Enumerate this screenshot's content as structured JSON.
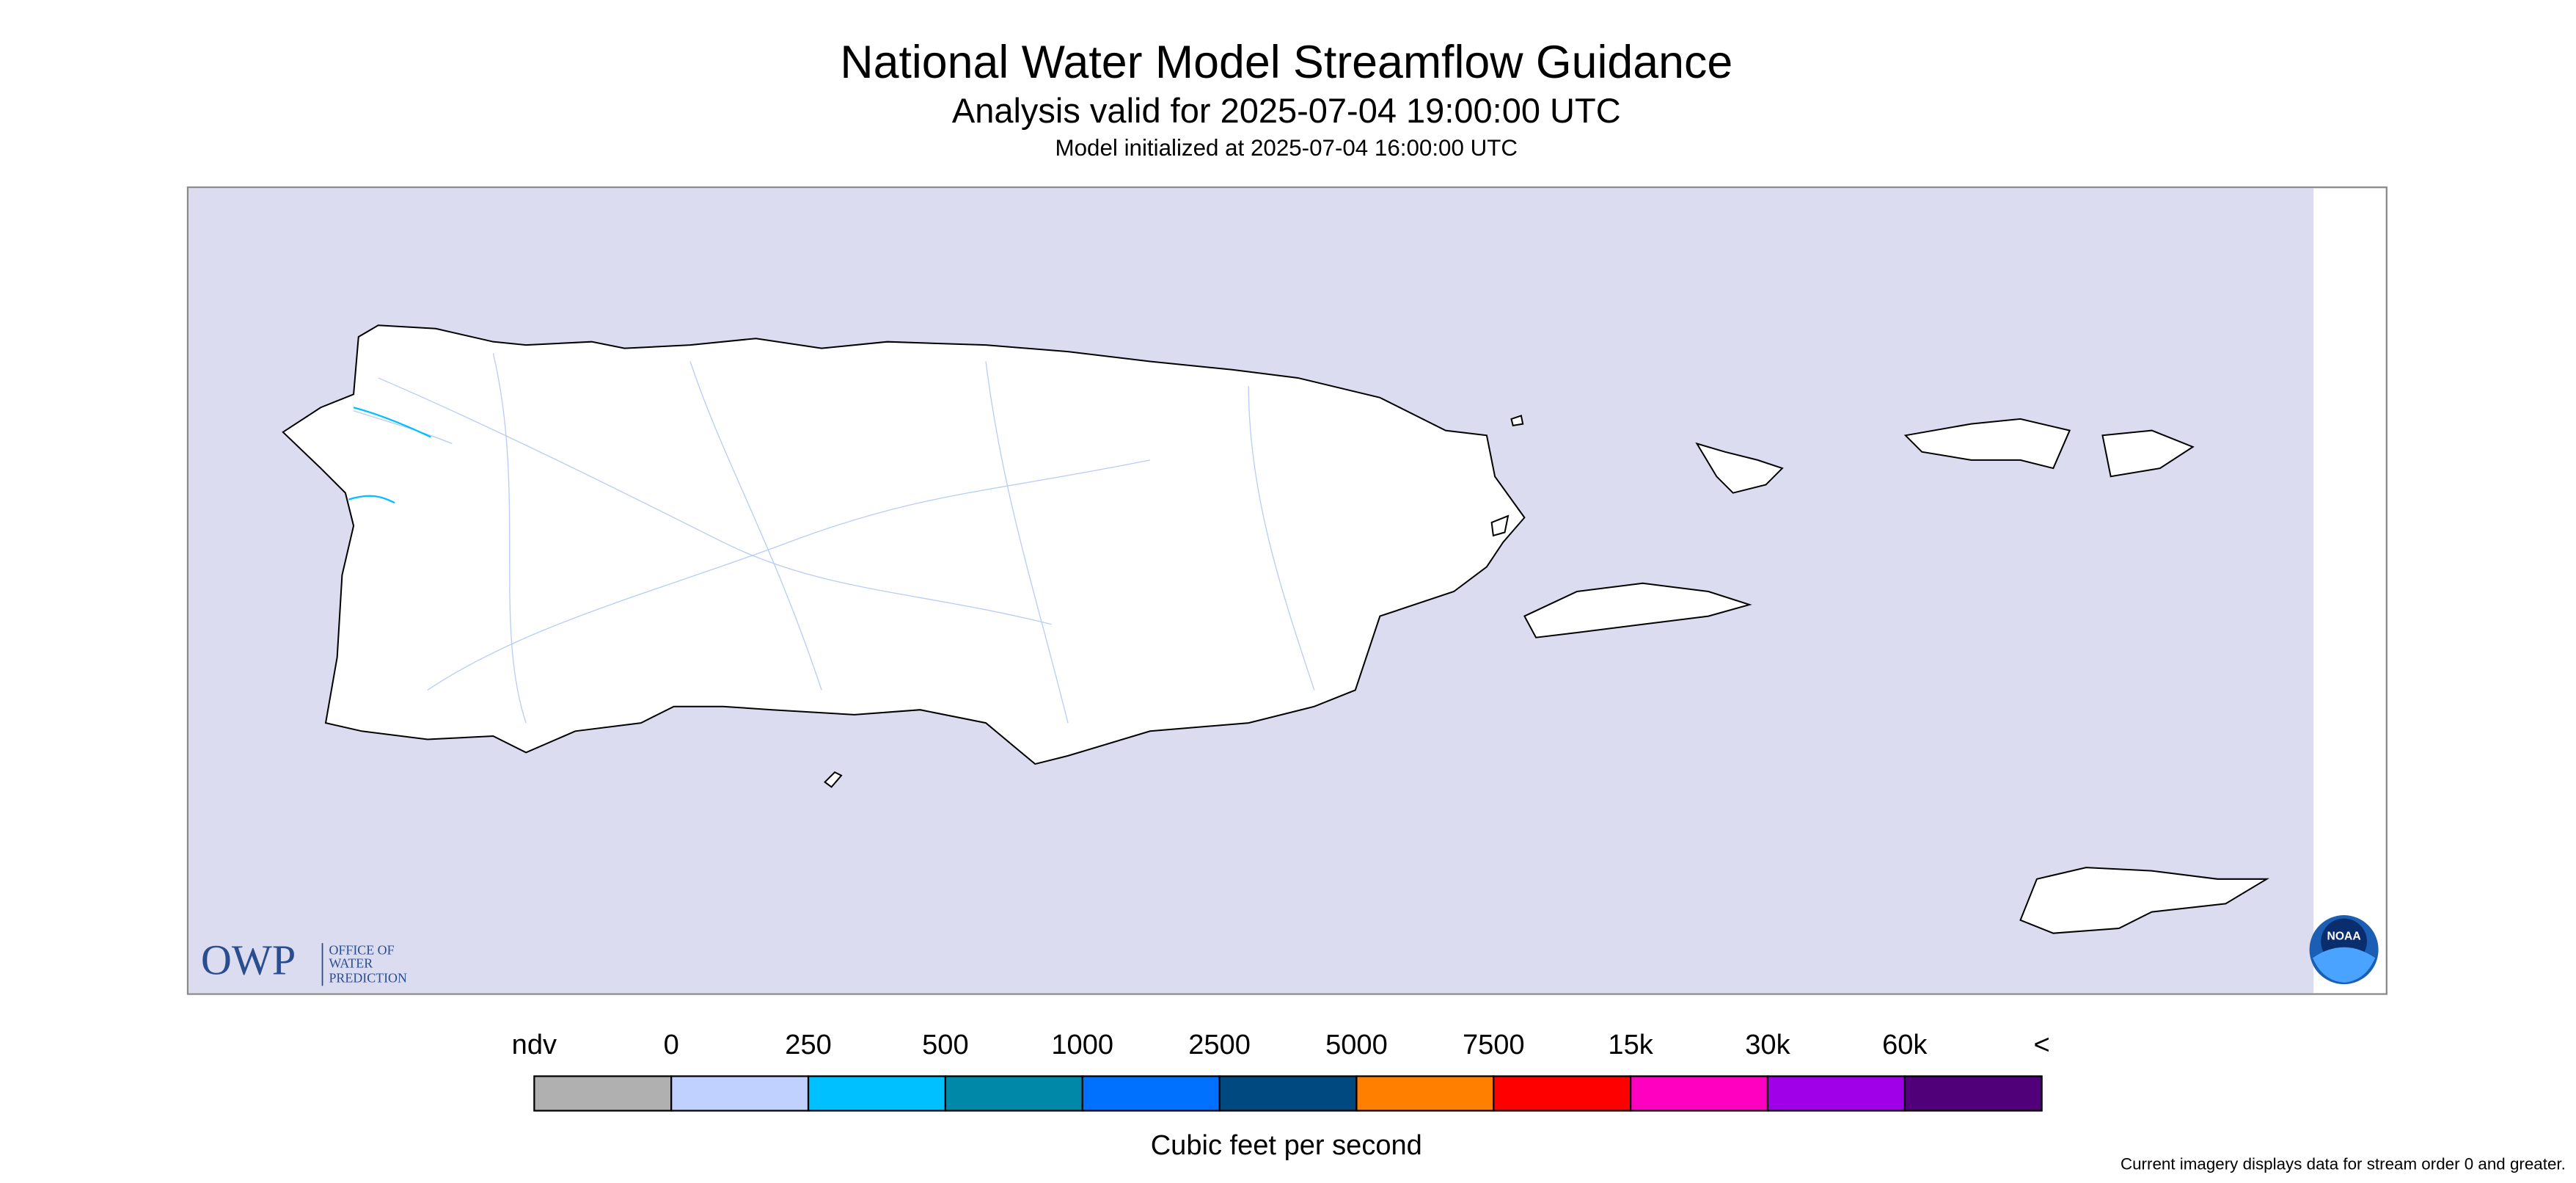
{
  "title": "National Water Model Streamflow Guidance",
  "subtitle": "Analysis valid for 2025-07-04 19:00:00 UTC",
  "initialized": "Model initialized at 2025-07-04 16:00:00 UTC",
  "logos": {
    "owp": "OWP",
    "owp_lines": [
      "OFFICE OF",
      "WATER",
      "PREDICTION"
    ],
    "noaa": "NOAA"
  },
  "legend": {
    "labels": [
      "ndv",
      "0",
      "250",
      "500",
      "1000",
      "2500",
      "5000",
      "7500",
      "15k",
      "30k",
      "60k",
      "<"
    ],
    "colors": [
      "#b0b0b0",
      "#c0d0ff",
      "#00c0ff",
      "#0088a8",
      "#0070ff",
      "#004880",
      "#ff8000",
      "#ff0000",
      "#ff00c0",
      "#a000e8",
      "#500078"
    ],
    "unit": "Cubic feet per second"
  },
  "footnote": "Current imagery displays data for stream order 0 and greater."
}
